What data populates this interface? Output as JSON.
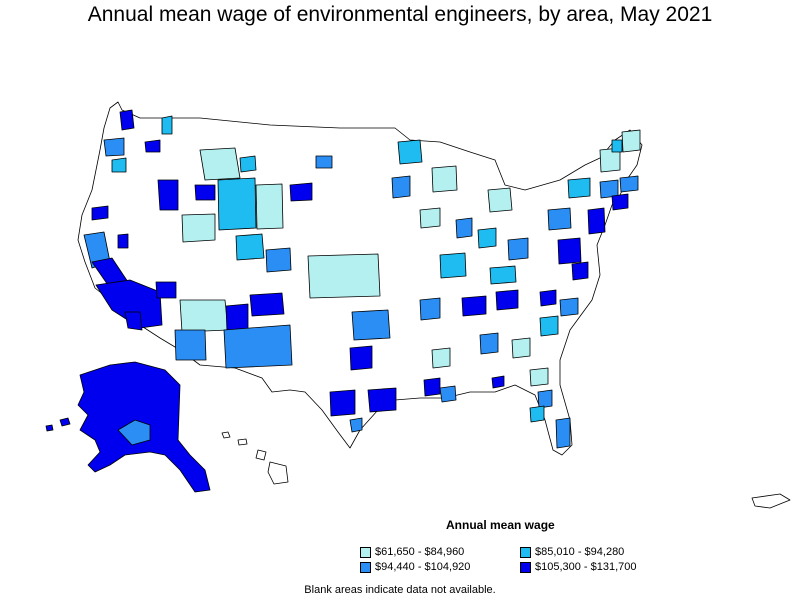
{
  "title": "Annual mean wage of environmental engineers, by area, May 2021",
  "legend": {
    "title": "Annual mean wage",
    "items": [
      {
        "label": "$61,650 - $84,960",
        "color": "#b4f0f0"
      },
      {
        "label": "$85,010 - $94,280",
        "color": "#1ebcf0"
      },
      {
        "label": "$94,440 - $104,920",
        "color": "#2a8ef5"
      },
      {
        "label": "$105,300 - $131,700",
        "color": "#0000ee"
      }
    ]
  },
  "note": "Blank areas indicate data not available.",
  "colors": {
    "border": "#000000",
    "blank": "#ffffff",
    "tier1": "#b4f0f0",
    "tier2": "#1ebcf0",
    "tier3": "#2a8ef5",
    "tier4": "#0000ee"
  }
}
